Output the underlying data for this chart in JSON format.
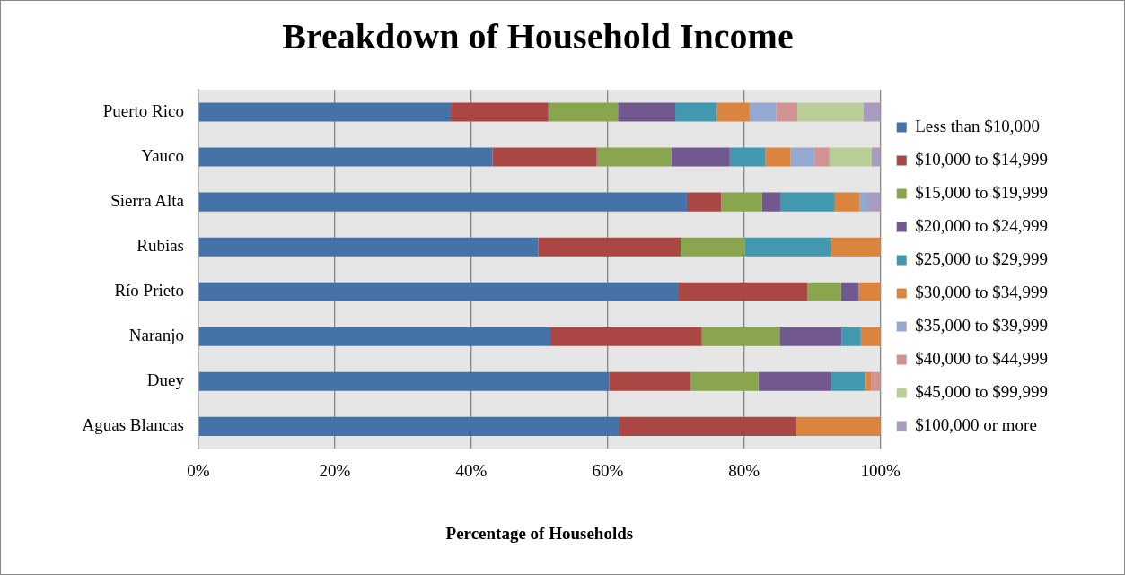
{
  "chart_data": {
    "type": "bar",
    "orientation": "horizontal",
    "stacked": true,
    "title": "Breakdown of Household Income",
    "xlabel": "Percentage of Households",
    "categories": [
      "Puerto Rico",
      "Yauco",
      "Sierra Alta",
      "Rubias",
      "Río Prieto",
      "Naranjo",
      "Duey",
      "Aguas Blancas"
    ],
    "series": [
      {
        "name": "Less than $10,000",
        "color": "#4572a7",
        "values": [
          37.0,
          43.1,
          71.6,
          49.8,
          70.3,
          51.6,
          60.2,
          61.6
        ]
      },
      {
        "name": "$10,000 to $14,999",
        "color": "#aa4643",
        "values": [
          14.3,
          15.3,
          5.0,
          20.9,
          19.0,
          22.2,
          11.9,
          26.1
        ]
      },
      {
        "name": "$15,000 to $19,999",
        "color": "#89a54e",
        "values": [
          10.2,
          10.9,
          6.0,
          9.4,
          4.9,
          11.4,
          10.0,
          0
        ]
      },
      {
        "name": "$20,000 to $24,999",
        "color": "#71588f",
        "values": [
          8.4,
          8.6,
          2.7,
          0,
          2.6,
          9.1,
          10.6,
          0
        ]
      },
      {
        "name": "$25,000 to $29,999",
        "color": "#4198af",
        "values": [
          6.1,
          5.2,
          8.0,
          12.6,
          0,
          2.8,
          5.0,
          0
        ]
      },
      {
        "name": "$30,000 to $34,999",
        "color": "#db843d",
        "values": [
          4.8,
          3.7,
          3.6,
          7.3,
          3.2,
          2.9,
          0.9,
          12.3
        ]
      },
      {
        "name": "$35,000 to $39,999",
        "color": "#93a9cf",
        "values": [
          3.9,
          3.6,
          1.3,
          0,
          0,
          0,
          0,
          0
        ]
      },
      {
        "name": "$40,000 to $44,999",
        "color": "#d19392",
        "values": [
          3.1,
          2.1,
          0,
          0,
          0,
          0,
          1.4,
          0
        ]
      },
      {
        "name": "$45,000 to $99,999",
        "color": "#b9cd96",
        "values": [
          9.7,
          6.2,
          0,
          0,
          0,
          0,
          0,
          0
        ]
      },
      {
        "name": "$100,000 or more",
        "color": "#a99bbd",
        "values": [
          2.5,
          1.3,
          1.8,
          0,
          0,
          0,
          0,
          0
        ]
      }
    ],
    "xlim": [
      0,
      100
    ],
    "xticks": [
      {
        "value": 0,
        "label": "0%"
      },
      {
        "value": 20,
        "label": "20%"
      },
      {
        "value": 40,
        "label": "40%"
      },
      {
        "value": 60,
        "label": "60%"
      },
      {
        "value": 80,
        "label": "80%"
      },
      {
        "value": 100,
        "label": "100%"
      }
    ],
    "grid": "x",
    "legend": "right"
  }
}
